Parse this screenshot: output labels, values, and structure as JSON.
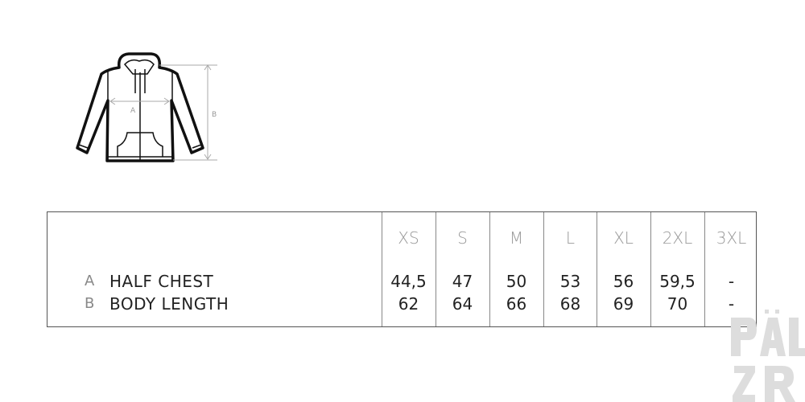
{
  "figure": {
    "label_a": "A",
    "label_b": "B"
  },
  "table": {
    "sizes": [
      "XS",
      "S",
      "M",
      "L",
      "XL",
      "2XL",
      "3XL"
    ],
    "rows": [
      {
        "letter": "A",
        "label": "HALF CHEST",
        "values": [
          "44,5",
          "47",
          "50",
          "53",
          "56",
          "59,5",
          "-"
        ]
      },
      {
        "letter": "B",
        "label": "BODY LENGTH",
        "values": [
          "62",
          "64",
          "66",
          "68",
          "69",
          "70",
          "-"
        ]
      }
    ]
  },
  "watermark": {
    "text": "PÄLZR"
  }
}
